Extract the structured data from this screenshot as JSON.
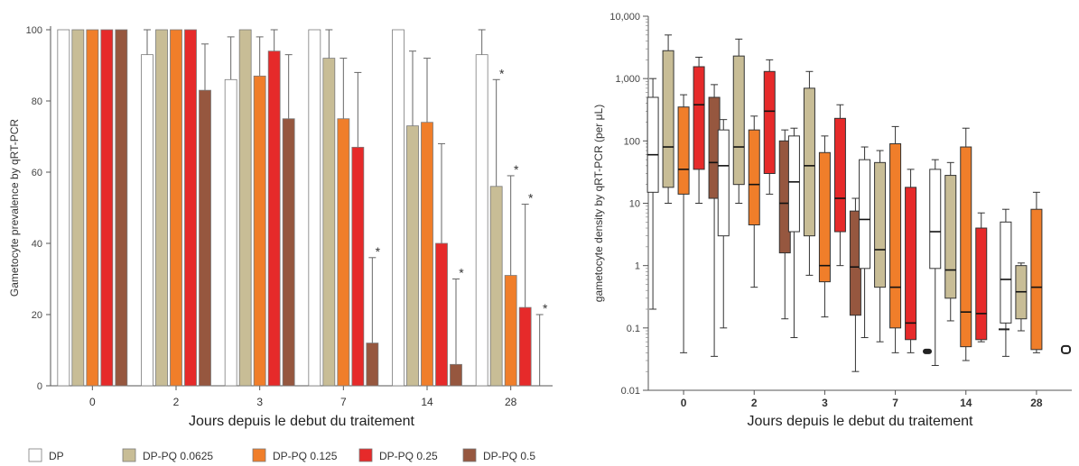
{
  "legend": {
    "items": [
      {
        "label": "DP",
        "color": "#ffffff"
      },
      {
        "label": "DP-PQ 0.0625",
        "color": "#c8bd96"
      },
      {
        "label": "DP-PQ 0.125",
        "color": "#f07e2a"
      },
      {
        "label": "DP-PQ 0.25",
        "color": "#e62a2a"
      },
      {
        "label": "DP-PQ 0.5",
        "color": "#96573f"
      }
    ]
  },
  "chart_data": [
    {
      "type": "bar",
      "title": "",
      "xlabel": "Jours depuis le debut du traitement",
      "ylabel": "Gametocyte prevalence by qRT-PCR",
      "ylim": [
        0,
        100
      ],
      "yticks": [
        "0",
        "20",
        "40",
        "60",
        "80",
        "100"
      ],
      "categories": [
        "0",
        "2",
        "3",
        "7",
        "14",
        "28"
      ],
      "grid": false,
      "series": [
        {
          "name": "DP",
          "values": [
            100,
            93,
            86,
            100,
            100,
            93
          ],
          "err_upper": [
            100,
            100,
            98,
            100,
            100,
            100
          ],
          "significant": [
            false,
            false,
            false,
            false,
            false,
            false
          ]
        },
        {
          "name": "DP-PQ 0.0625",
          "values": [
            100,
            100,
            100,
            92,
            73,
            56
          ],
          "err_upper": [
            100,
            100,
            100,
            100,
            94,
            86
          ],
          "significant": [
            false,
            false,
            false,
            false,
            false,
            true
          ]
        },
        {
          "name": "DP-PQ 0.125",
          "values": [
            100,
            100,
            87,
            75,
            74,
            31
          ],
          "err_upper": [
            100,
            100,
            98,
            92,
            92,
            59
          ],
          "significant": [
            false,
            false,
            false,
            false,
            false,
            true
          ]
        },
        {
          "name": "DP-PQ 0.25",
          "values": [
            100,
            100,
            94,
            67,
            40,
            22
          ],
          "err_upper": [
            100,
            100,
            100,
            88,
            68,
            51
          ],
          "significant": [
            false,
            false,
            false,
            false,
            false,
            true
          ]
        },
        {
          "name": "DP-PQ 0.5",
          "values": [
            100,
            83,
            75,
            12,
            6,
            0
          ],
          "err_upper": [
            100,
            96,
            93,
            36,
            30,
            20
          ],
          "significant": [
            false,
            false,
            false,
            true,
            true,
            true
          ]
        }
      ],
      "annotation": "*"
    },
    {
      "type": "box",
      "title": "",
      "xlabel": "Jours depuis le debut du traitement",
      "ylabel": "gametocyte density by qRT-PCR (per μL)",
      "yscale": "log",
      "ylim": [
        0.01,
        10000
      ],
      "yticks": [
        "0.01",
        "0.1",
        "1",
        "10",
        "100",
        "1,000",
        "10,000"
      ],
      "categories": [
        "0",
        "2",
        "3",
        "7",
        "14",
        "28"
      ],
      "grid": false,
      "series": [
        {
          "name": "DP",
          "boxes": [
            {
              "min": 0.2,
              "q1": 15,
              "median": 60,
              "q3": 500,
              "max": 1000
            },
            {
              "min": 0.1,
              "q1": 3,
              "median": 40,
              "q3": 150,
              "max": 220
            },
            {
              "min": 0.07,
              "q1": 3.5,
              "median": 22,
              "q3": 120,
              "max": 160
            },
            {
              "min": 0.07,
              "q1": 0.9,
              "median": 5.5,
              "q3": 50,
              "max": 80
            },
            {
              "min": 0.025,
              "q1": 0.9,
              "median": 3.5,
              "q3": 35,
              "max": 50
            },
            {
              "min": 0.035,
              "q1": 0.12,
              "median": 0.6,
              "q3": 5,
              "max": 8
            }
          ]
        },
        {
          "name": "DP-PQ 0.0625",
          "boxes": [
            {
              "min": 10,
              "q1": 18,
              "median": 80,
              "q3": 2800,
              "max": 5000
            },
            {
              "min": 10,
              "q1": 20,
              "median": 80,
              "q3": 2300,
              "max": 4300
            },
            {
              "min": 0.7,
              "q1": 3,
              "median": 40,
              "q3": 700,
              "max": 1300
            },
            {
              "min": 0.06,
              "q1": 0.45,
              "median": 1.8,
              "q3": 45,
              "max": 70
            },
            {
              "min": 0.13,
              "q1": 0.3,
              "median": 0.85,
              "q3": 28,
              "max": 45
            },
            {
              "min": 0.09,
              "q1": 0.14,
              "median": 0.38,
              "q3": 1,
              "max": 1.1
            }
          ]
        },
        {
          "name": "DP-PQ 0.125",
          "boxes": [
            {
              "min": 0.04,
              "q1": 14,
              "median": 35,
              "q3": 350,
              "max": 550
            },
            {
              "min": 0.45,
              "q1": 4.5,
              "median": 20,
              "q3": 150,
              "max": 250
            },
            {
              "min": 0.15,
              "q1": 0.55,
              "median": 1,
              "q3": 65,
              "max": 120
            },
            {
              "min": 0.04,
              "q1": 0.1,
              "median": 0.45,
              "q3": 90,
              "max": 170
            },
            {
              "min": 0.03,
              "q1": 0.05,
              "median": 0.18,
              "q3": 80,
              "max": 160
            },
            {
              "min": 0.04,
              "q1": 0.045,
              "median": 0.45,
              "q3": 8,
              "max": 15
            }
          ]
        },
        {
          "name": "DP-PQ 0.25",
          "boxes": [
            {
              "min": 10,
              "q1": 35,
              "median": 380,
              "q3": 1550,
              "max": 2200
            },
            {
              "min": 14,
              "q1": 30,
              "median": 300,
              "q3": 1300,
              "max": 2000
            },
            {
              "min": 1,
              "q1": 3.5,
              "median": 12,
              "q3": 230,
              "max": 380
            },
            {
              "min": 0.04,
              "q1": 0.065,
              "median": 0.12,
              "q3": 18,
              "max": 35
            },
            {
              "min": 0.06,
              "q1": 0.065,
              "median": 0.17,
              "q3": 4,
              "max": 7
            }
          ]
        },
        {
          "name": "DP-PQ 0.5",
          "boxes": [
            {
              "min": 0.035,
              "q1": 12,
              "median": 45,
              "q3": 500,
              "max": 800
            },
            {
              "min": 0.14,
              "q1": 1.6,
              "median": 10,
              "q3": 100,
              "max": 150
            },
            {
              "min": 0.02,
              "q1": 0.16,
              "median": 0.95,
              "q3": 7.5,
              "max": 12
            }
          ]
        }
      ]
    }
  ]
}
